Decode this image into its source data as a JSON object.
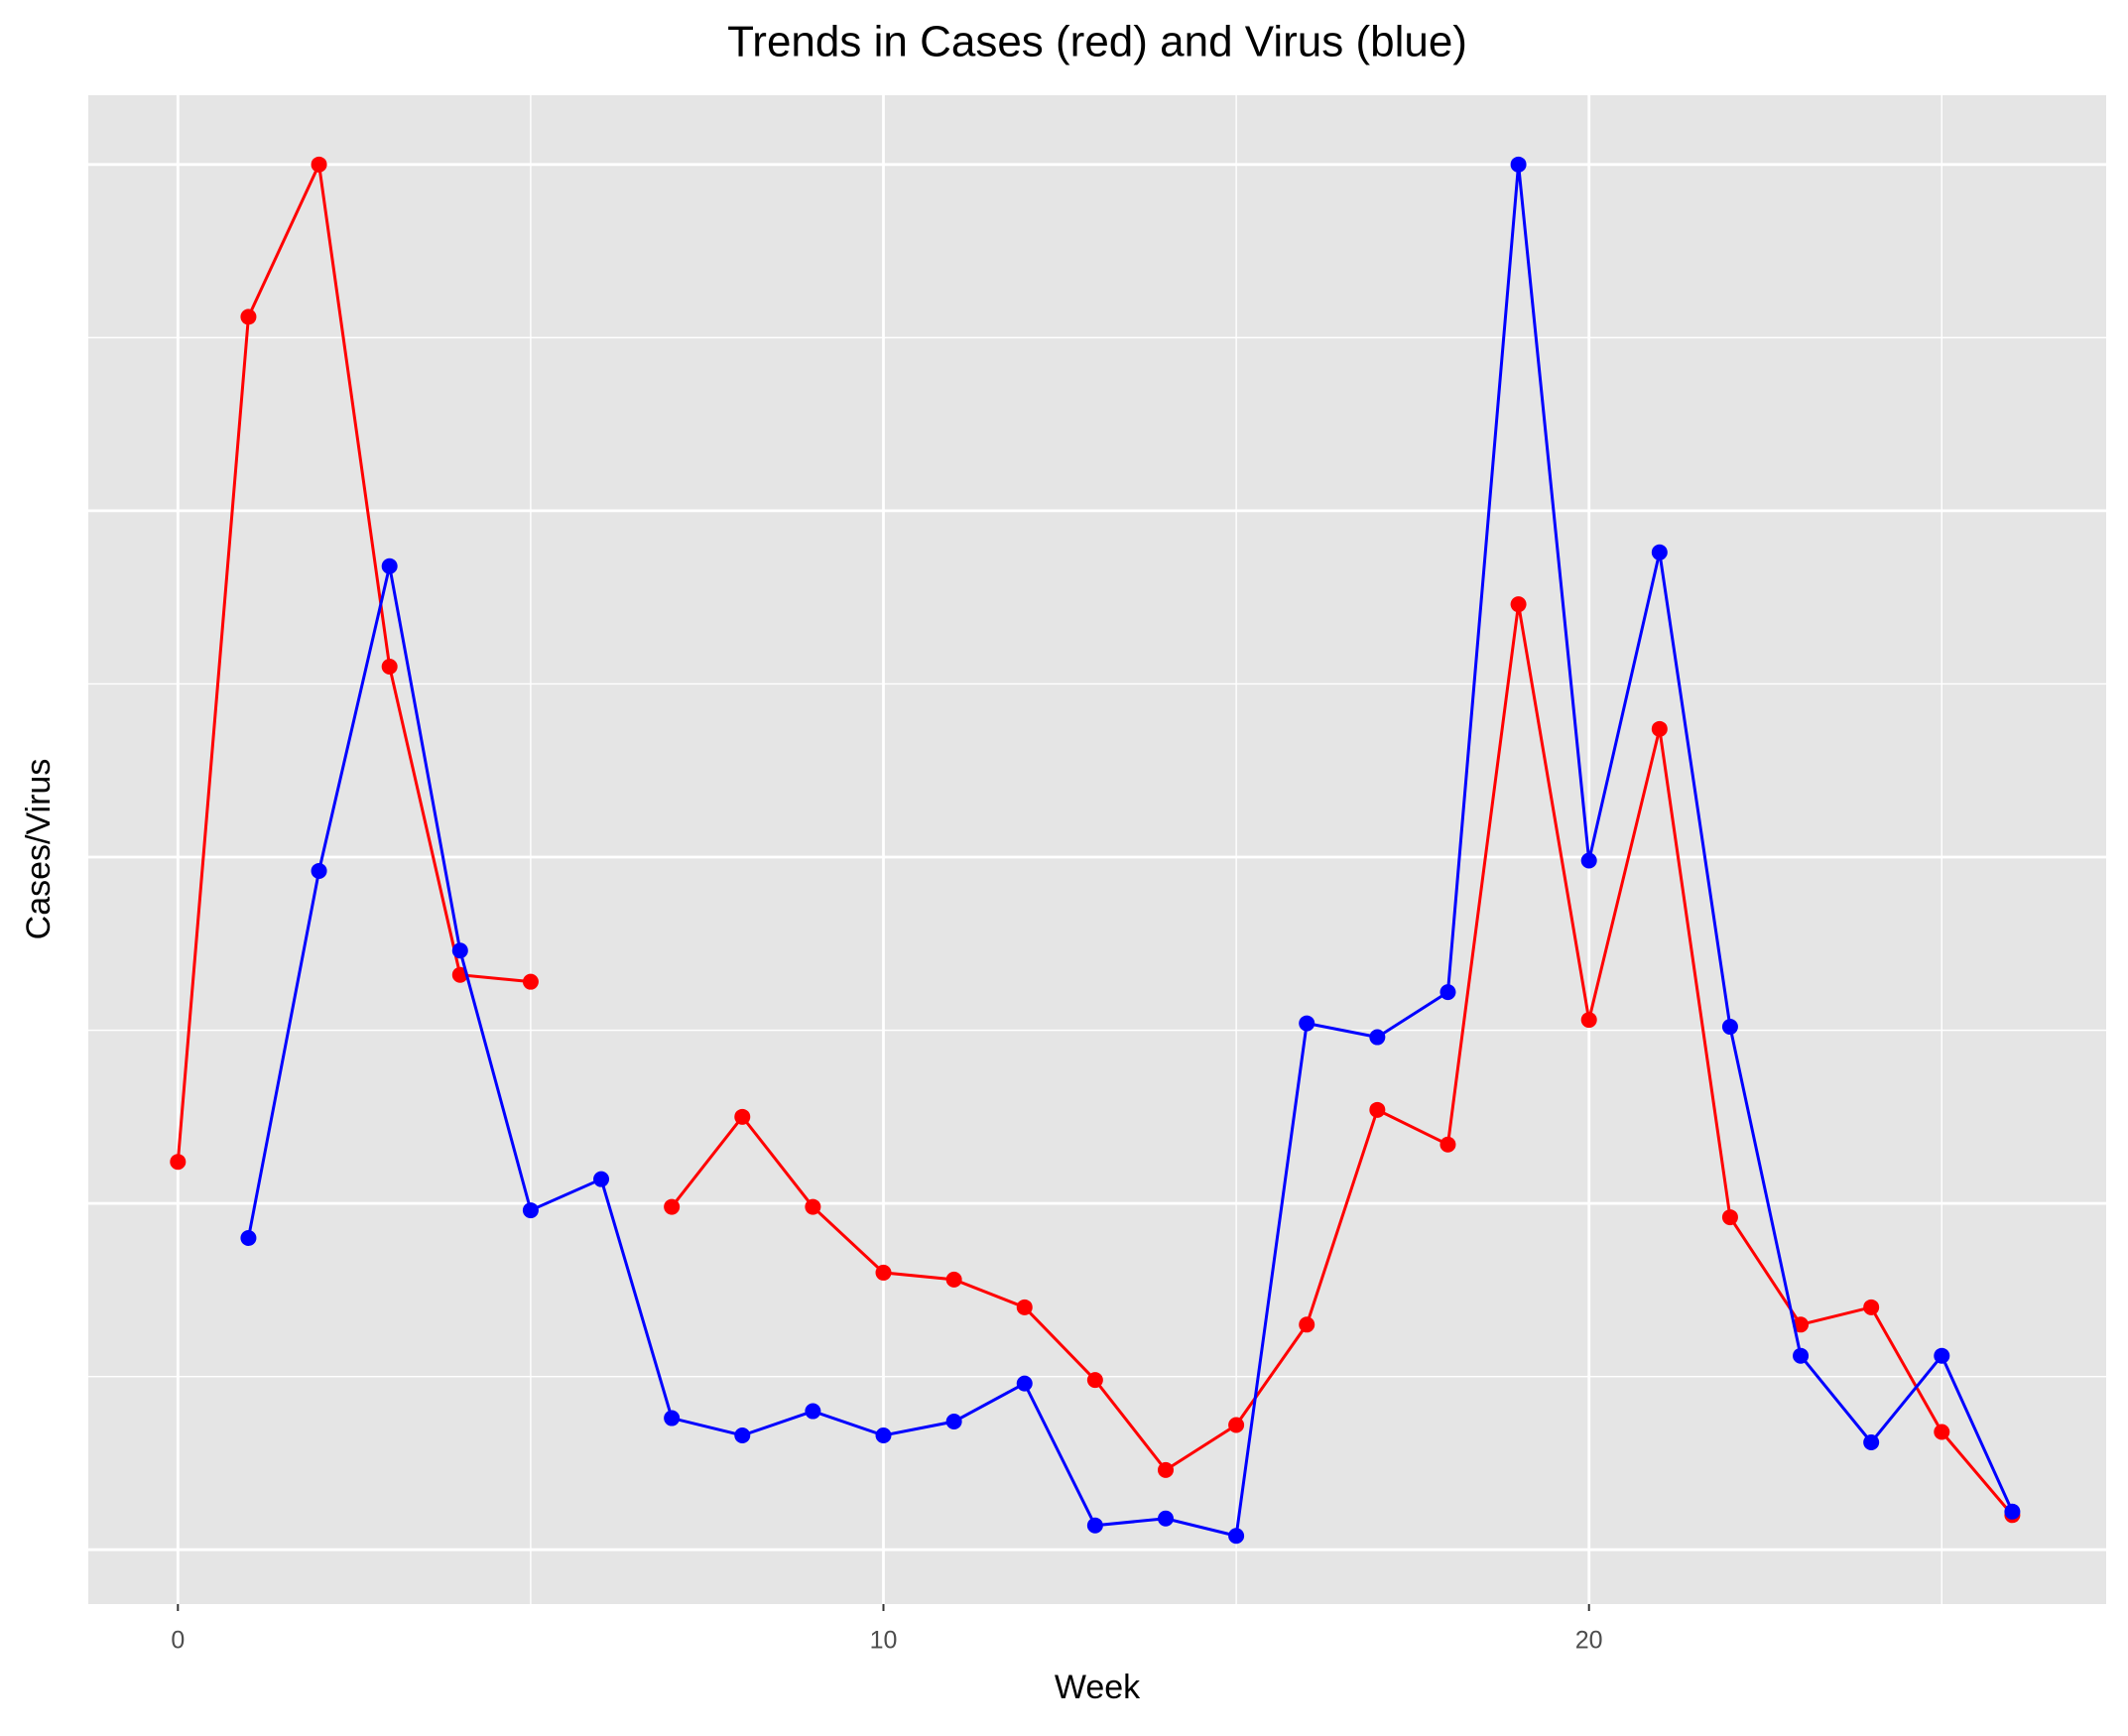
{
  "chart_data": {
    "type": "line",
    "title": "Trends in Cases (red) and Virus (blue)",
    "x_label": "Week",
    "y_label": "Cases/Virus",
    "x": [
      0,
      1,
      2,
      3,
      4,
      5,
      6,
      7,
      8,
      9,
      10,
      11,
      12,
      13,
      14,
      15,
      16,
      17,
      18,
      19,
      20,
      21,
      22,
      23,
      24,
      25,
      26
    ],
    "series": [
      {
        "color": "#ff0000",
        "values": [
          1.12,
          3.56,
          4.0,
          2.55,
          1.66,
          1.64,
          null,
          0.99,
          1.25,
          0.99,
          0.8,
          0.78,
          0.7,
          0.49,
          0.23,
          0.36,
          0.65,
          1.27,
          1.17,
          2.73,
          1.53,
          2.37,
          0.96,
          0.65,
          0.7,
          0.34,
          0.1
        ]
      },
      {
        "color": "#0000ff",
        "values": [
          null,
          0.9,
          1.96,
          2.84,
          1.73,
          0.98,
          1.07,
          0.38,
          0.33,
          0.4,
          0.33,
          0.37,
          0.48,
          0.07,
          0.09,
          0.04,
          1.52,
          1.48,
          1.61,
          4.0,
          1.99,
          2.88,
          1.51,
          0.56,
          0.31,
          0.56,
          0.11
        ]
      }
    ],
    "xlim": [
      -1.27,
      27.33
    ],
    "xticks": [
      0,
      10,
      20
    ],
    "ylim": [
      -0.157,
      4.2
    ],
    "yticks": [
      0,
      1,
      2,
      3,
      4
    ],
    "grid": true
  }
}
